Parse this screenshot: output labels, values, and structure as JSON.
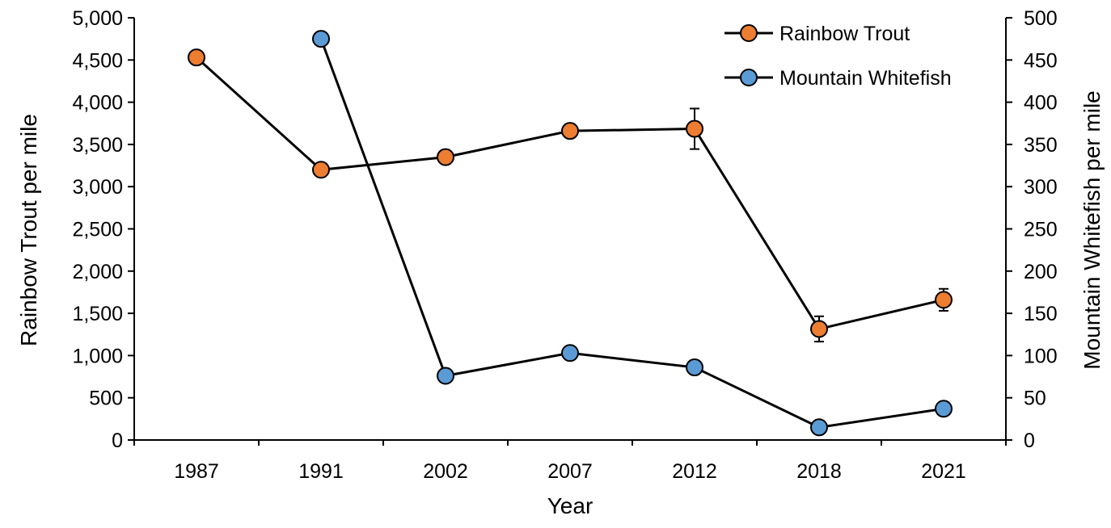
{
  "chart_data": {
    "type": "line",
    "categories": [
      "1987",
      "1991",
      "2002",
      "2007",
      "2012",
      "2018",
      "2021"
    ],
    "xlabel": "Year",
    "ylabel_left": "Rainbow Trout per mile",
    "ylabel_right": "Mountain Whitefish per mile",
    "ylim_left": [
      0,
      5000
    ],
    "yticks_left": [
      0,
      500,
      1000,
      1500,
      2000,
      2500,
      3000,
      3500,
      4000,
      4500,
      5000
    ],
    "yticks_left_labels": [
      "0",
      "500",
      "1,000",
      "1,500",
      "2,000",
      "2,500",
      "3,000",
      "3,500",
      "4,000",
      "4,500",
      "5,000"
    ],
    "ylim_right": [
      0,
      500
    ],
    "yticks_right": [
      0,
      50,
      100,
      150,
      200,
      250,
      300,
      350,
      400,
      450,
      500
    ],
    "yticks_right_labels": [
      "0",
      "50",
      "100",
      "150",
      "200",
      "250",
      "300",
      "350",
      "400",
      "450",
      "500"
    ],
    "grid": false,
    "legend_position": "top-right",
    "series": [
      {
        "name": "Rainbow Trout",
        "axis": "left",
        "color": "#ED7D31",
        "values": [
          4530,
          3200,
          3350,
          3660,
          3685,
          1315,
          1660
        ],
        "error": [
          null,
          null,
          null,
          null,
          240,
          150,
          130
        ]
      },
      {
        "name": "Mountain Whitefish",
        "axis": "right",
        "color": "#5B9BD5",
        "values": [
          null,
          475,
          76,
          103,
          86,
          15,
          37
        ],
        "error": [
          null,
          null,
          null,
          null,
          null,
          null,
          null
        ]
      }
    ]
  }
}
